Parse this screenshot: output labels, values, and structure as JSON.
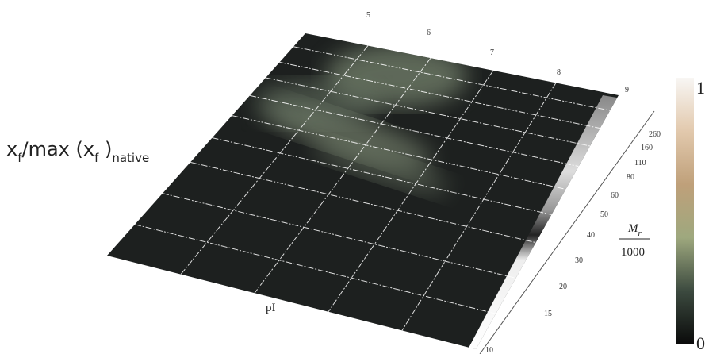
{
  "figure": {
    "z_label": {
      "x1": "x",
      "sub1": "f",
      "mid": "/max (x",
      "sub2": "f",
      "end": " )",
      "sub3": "native"
    },
    "pI_label": "pI",
    "mr_label": {
      "numerator": "M",
      "sub": "r",
      "denominator": "1000"
    },
    "pI_ticks": [
      5,
      6,
      7,
      8,
      9
    ],
    "mr_ticks": [
      260,
      160,
      110,
      80,
      60,
      50,
      40,
      30,
      20,
      15,
      10
    ],
    "colorbar": {
      "max": 1,
      "min": 0
    }
  }
}
